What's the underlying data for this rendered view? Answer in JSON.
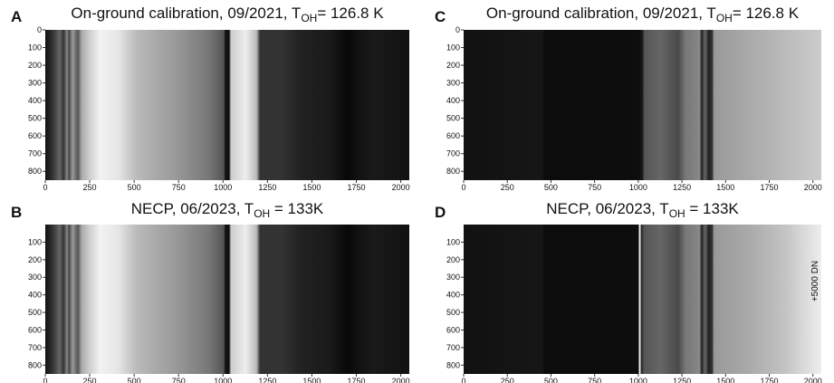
{
  "chart_data": [
    {
      "type": "image",
      "label": "A",
      "title": {
        "text": "On-ground calibration, 09/2021, T",
        "subscript": "OH",
        "rest": "= 126.8 K"
      },
      "xlim": [
        0,
        2048
      ],
      "ylim": [
        0,
        850
      ],
      "xticks": [
        0,
        250,
        500,
        750,
        1000,
        1250,
        1500,
        1750,
        2000
      ],
      "yticks": [
        0,
        100,
        200,
        300,
        400,
        500,
        600,
        700,
        800
      ]
    },
    {
      "type": "image",
      "label": "C",
      "title": {
        "text": "On-ground calibration, 09/2021, T",
        "subscript": "OH",
        "rest": "= 126.8 K"
      },
      "xlim": [
        0,
        2048
      ],
      "ylim": [
        0,
        850
      ],
      "xticks": [
        0,
        250,
        500,
        750,
        1000,
        1250,
        1500,
        1750,
        2000
      ],
      "yticks": [
        0,
        100,
        200,
        300,
        400,
        500,
        600,
        700,
        800
      ]
    },
    {
      "type": "image",
      "label": "B",
      "title": {
        "text": "NECP, 06/2023, T",
        "subscript": "OH",
        "rest": " = 133K"
      },
      "xlim": [
        0,
        2048
      ],
      "ylim": [
        0,
        850
      ],
      "xticks": [
        0,
        250,
        500,
        750,
        1000,
        1250,
        1500,
        1750,
        2000
      ],
      "yticks": [
        100,
        200,
        300,
        400,
        500,
        600,
        700,
        800
      ]
    },
    {
      "type": "image",
      "label": "D",
      "title": {
        "text": "NECP, 06/2023, T",
        "subscript": "OH",
        "rest": " = 133K"
      },
      "xlim": [
        0,
        2048
      ],
      "ylim": [
        0,
        850
      ],
      "xticks": [
        0,
        250,
        500,
        750,
        1000,
        1250,
        1500,
        1750,
        2000
      ],
      "yticks": [
        100,
        200,
        300,
        400,
        500,
        600,
        700,
        800
      ],
      "annotation": "+5000 DN"
    }
  ]
}
